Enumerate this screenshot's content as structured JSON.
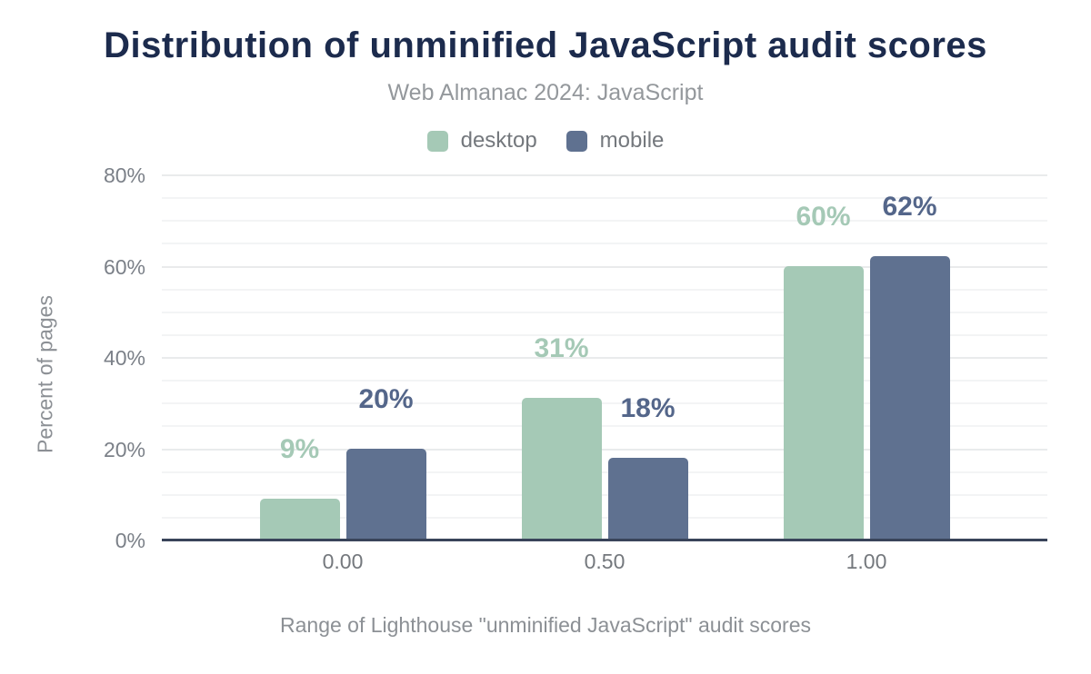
{
  "header": {
    "title": "Distribution of unminified JavaScript audit scores",
    "subtitle": "Web Almanac 2024: JavaScript"
  },
  "chart_data": {
    "type": "bar",
    "title": "Distribution of unminified JavaScript audit scores",
    "subtitle": "Web Almanac 2024: JavaScript",
    "categories": [
      "0.00",
      "0.50",
      "1.00"
    ],
    "series": [
      {
        "name": "desktop",
        "values": [
          9,
          31,
          60
        ],
        "color": "#a5c9b6",
        "label_color": "#a5c9b6"
      },
      {
        "name": "mobile",
        "values": [
          20,
          18,
          62
        ],
        "color": "#5f7190",
        "label_color": "#54668a"
      }
    ],
    "value_suffix": "%",
    "xlabel": "Range of Lighthouse \"unminified JavaScript\" audit scores",
    "ylabel": "Percent of pages",
    "ylim": [
      0,
      80
    ],
    "yticks": [
      {
        "value": 0,
        "label": "0%"
      },
      {
        "value": 20,
        "label": "20%"
      },
      {
        "value": 40,
        "label": "40%"
      },
      {
        "value": 60,
        "label": "60%"
      },
      {
        "value": 80,
        "label": "80%"
      }
    ],
    "minor_grid_step": 5,
    "major_grid_step": 20,
    "grid": true,
    "legend_position": "top"
  }
}
